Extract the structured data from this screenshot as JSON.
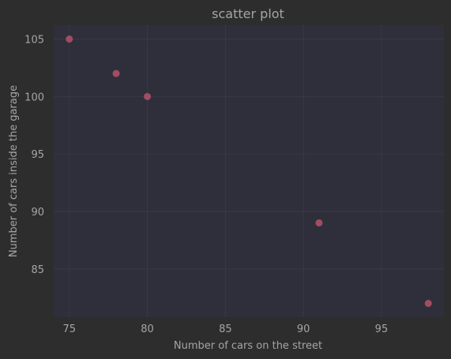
{
  "chart_data": {
    "type": "scatter",
    "title": "scatter plot",
    "xlabel": "Number of cars on the street",
    "ylabel": "Number of cars inside the garage",
    "xlim": [
      74,
      99
    ],
    "ylim": [
      80.8,
      106.2
    ],
    "xticks": [
      75,
      80,
      85,
      90,
      95
    ],
    "yticks": [
      85,
      90,
      95,
      100,
      105
    ],
    "grid": true,
    "points": [
      {
        "x": 75,
        "y": 105
      },
      {
        "x": 78,
        "y": 102
      },
      {
        "x": 80,
        "y": 100
      },
      {
        "x": 91,
        "y": 89
      },
      {
        "x": 98,
        "y": 82
      }
    ],
    "colors": {
      "figure_bg": "#2d2d2d",
      "plot_bg": "#2f2f3b",
      "grid": "#393945",
      "marker": "#a14d62",
      "text": "#a5a5a5"
    }
  }
}
